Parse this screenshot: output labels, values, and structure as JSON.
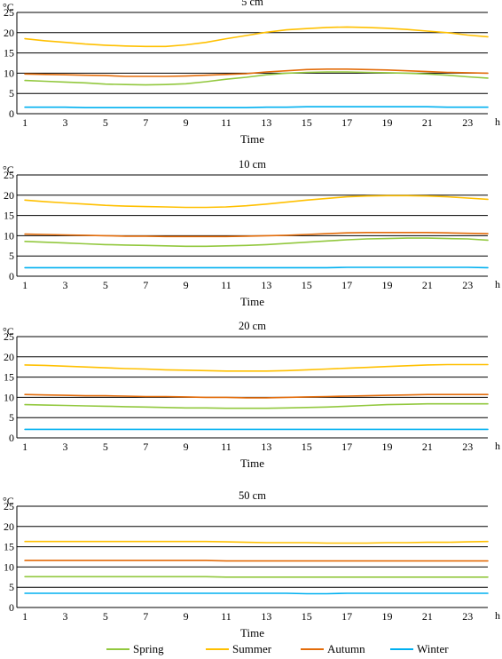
{
  "chart_data": [
    {
      "type": "line",
      "title": "5 cm",
      "unit_label": "°C",
      "xlabel": "Time",
      "x_unit_label": "h",
      "ylim": [
        0,
        25
      ],
      "y_ticks": [
        0,
        5,
        10,
        15,
        20,
        25
      ],
      "x_ticks": [
        1,
        3,
        5,
        7,
        9,
        11,
        13,
        15,
        17,
        19,
        21,
        23
      ],
      "x_range": [
        0.6,
        24
      ],
      "grid": "horizontal",
      "x": [
        1,
        2,
        3,
        4,
        5,
        6,
        7,
        8,
        9,
        10,
        11,
        12,
        13,
        14,
        15,
        16,
        17,
        18,
        19,
        20,
        21,
        22,
        23,
        24
      ],
      "series": [
        {
          "name": "Spring",
          "color": "#92C83E",
          "values": [
            8.2,
            8.0,
            7.8,
            7.6,
            7.3,
            7.2,
            7.1,
            7.2,
            7.4,
            7.9,
            8.5,
            9.0,
            9.6,
            10.0,
            10.2,
            10.3,
            10.3,
            10.2,
            10.1,
            10.0,
            9.8,
            9.5,
            9.1,
            8.8
          ]
        },
        {
          "name": "Summer",
          "color": "#FFC000",
          "values": [
            18.5,
            18.0,
            17.6,
            17.2,
            16.9,
            16.7,
            16.6,
            16.6,
            17.0,
            17.6,
            18.5,
            19.3,
            20.1,
            20.7,
            21.0,
            21.3,
            21.4,
            21.3,
            21.1,
            20.8,
            20.4,
            20.0,
            19.4,
            19.0
          ]
        },
        {
          "name": "Autumn",
          "color": "#E36C0A",
          "values": [
            9.8,
            9.7,
            9.6,
            9.5,
            9.4,
            9.2,
            9.2,
            9.2,
            9.3,
            9.5,
            9.7,
            9.9,
            10.3,
            10.6,
            10.9,
            11.0,
            11.0,
            10.9,
            10.8,
            10.6,
            10.4,
            10.2,
            10.1,
            10.0
          ]
        },
        {
          "name": "Winter",
          "color": "#00B0F0",
          "values": [
            1.6,
            1.6,
            1.6,
            1.5,
            1.5,
            1.5,
            1.5,
            1.5,
            1.5,
            1.5,
            1.5,
            1.5,
            1.6,
            1.6,
            1.7,
            1.7,
            1.7,
            1.7,
            1.7,
            1.7,
            1.7,
            1.6,
            1.6,
            1.6
          ]
        }
      ]
    },
    {
      "type": "line",
      "title": "10 cm",
      "unit_label": "°C",
      "xlabel": "Time",
      "x_unit_label": "h",
      "ylim": [
        0,
        25
      ],
      "y_ticks": [
        0,
        5,
        10,
        15,
        20,
        25
      ],
      "x_ticks": [
        1,
        3,
        5,
        7,
        9,
        11,
        13,
        15,
        17,
        19,
        21,
        23
      ],
      "x_range": [
        0.6,
        24
      ],
      "grid": "horizontal",
      "x": [
        1,
        2,
        3,
        4,
        5,
        6,
        7,
        8,
        9,
        10,
        11,
        12,
        13,
        14,
        15,
        16,
        17,
        18,
        19,
        20,
        21,
        22,
        23,
        24
      ],
      "series": [
        {
          "name": "Spring",
          "color": "#92C83E",
          "values": [
            8.6,
            8.4,
            8.2,
            8.0,
            7.8,
            7.7,
            7.6,
            7.5,
            7.4,
            7.4,
            7.5,
            7.6,
            7.8,
            8.1,
            8.4,
            8.7,
            9.0,
            9.2,
            9.3,
            9.4,
            9.4,
            9.3,
            9.2,
            8.9
          ]
        },
        {
          "name": "Summer",
          "color": "#FFC000",
          "values": [
            18.8,
            18.4,
            18.1,
            17.8,
            17.5,
            17.3,
            17.2,
            17.1,
            17.0,
            17.0,
            17.1,
            17.4,
            17.8,
            18.3,
            18.8,
            19.2,
            19.6,
            19.8,
            19.9,
            19.9,
            19.8,
            19.6,
            19.3,
            19.0
          ]
        },
        {
          "name": "Autumn",
          "color": "#E36C0A",
          "values": [
            10.4,
            10.3,
            10.2,
            10.1,
            10.0,
            9.9,
            9.9,
            9.8,
            9.8,
            9.8,
            9.8,
            9.9,
            10.0,
            10.1,
            10.3,
            10.5,
            10.7,
            10.8,
            10.8,
            10.8,
            10.8,
            10.7,
            10.6,
            10.5
          ]
        },
        {
          "name": "Winter",
          "color": "#00B0F0",
          "values": [
            2.1,
            2.1,
            2.1,
            2.1,
            2.1,
            2.1,
            2.1,
            2.1,
            2.1,
            2.1,
            2.1,
            2.1,
            2.1,
            2.1,
            2.1,
            2.1,
            2.2,
            2.2,
            2.2,
            2.2,
            2.2,
            2.2,
            2.2,
            2.1
          ]
        }
      ]
    },
    {
      "type": "line",
      "title": "20 cm",
      "unit_label": "°C",
      "xlabel": "Time",
      "x_unit_label": "h",
      "ylim": [
        0,
        25
      ],
      "y_ticks": [
        0,
        5,
        10,
        15,
        20,
        25
      ],
      "x_ticks": [
        1,
        3,
        5,
        7,
        9,
        11,
        13,
        15,
        17,
        19,
        21,
        23
      ],
      "x_range": [
        0.6,
        24
      ],
      "grid": "horizontal",
      "x": [
        1,
        2,
        3,
        4,
        5,
        6,
        7,
        8,
        9,
        10,
        11,
        12,
        13,
        14,
        15,
        16,
        17,
        18,
        19,
        20,
        21,
        22,
        23,
        24
      ],
      "series": [
        {
          "name": "Spring",
          "color": "#92C83E",
          "values": [
            8.2,
            8.1,
            8.0,
            7.9,
            7.8,
            7.7,
            7.6,
            7.5,
            7.4,
            7.4,
            7.3,
            7.3,
            7.3,
            7.4,
            7.5,
            7.6,
            7.8,
            8.0,
            8.2,
            8.3,
            8.4,
            8.4,
            8.4,
            8.4
          ]
        },
        {
          "name": "Summer",
          "color": "#FFC000",
          "values": [
            18.0,
            17.9,
            17.7,
            17.5,
            17.3,
            17.1,
            17.0,
            16.8,
            16.7,
            16.6,
            16.5,
            16.5,
            16.5,
            16.6,
            16.8,
            17.0,
            17.2,
            17.4,
            17.6,
            17.8,
            18.0,
            18.1,
            18.1,
            18.1
          ]
        },
        {
          "name": "Autumn",
          "color": "#E36C0A",
          "values": [
            10.7,
            10.6,
            10.5,
            10.4,
            10.4,
            10.3,
            10.2,
            10.2,
            10.1,
            10.0,
            10.0,
            9.9,
            9.9,
            10.0,
            10.1,
            10.2,
            10.3,
            10.4,
            10.5,
            10.6,
            10.7,
            10.7,
            10.7,
            10.7
          ]
        },
        {
          "name": "Winter",
          "color": "#00B0F0",
          "values": [
            2.1,
            2.1,
            2.1,
            2.1,
            2.1,
            2.1,
            2.1,
            2.1,
            2.1,
            2.1,
            2.1,
            2.1,
            2.1,
            2.1,
            2.1,
            2.1,
            2.1,
            2.1,
            2.1,
            2.1,
            2.1,
            2.1,
            2.1,
            2.1
          ]
        }
      ]
    },
    {
      "type": "line",
      "title": "50 cm",
      "unit_label": "°C",
      "xlabel": "Time",
      "x_unit_label": "h",
      "ylim": [
        0,
        25
      ],
      "y_ticks": [
        0,
        5,
        10,
        15,
        20,
        25
      ],
      "x_ticks": [
        1,
        3,
        5,
        7,
        9,
        11,
        13,
        15,
        17,
        19,
        21,
        23
      ],
      "x_range": [
        0.6,
        24
      ],
      "grid": "horizontal",
      "x": [
        1,
        2,
        3,
        4,
        5,
        6,
        7,
        8,
        9,
        10,
        11,
        12,
        13,
        14,
        15,
        16,
        17,
        18,
        19,
        20,
        21,
        22,
        23,
        24
      ],
      "series": [
        {
          "name": "Spring",
          "color": "#92C83E",
          "values": [
            7.6,
            7.6,
            7.6,
            7.6,
            7.6,
            7.6,
            7.6,
            7.6,
            7.6,
            7.6,
            7.5,
            7.5,
            7.5,
            7.5,
            7.5,
            7.5,
            7.5,
            7.5,
            7.5,
            7.5,
            7.5,
            7.5,
            7.5,
            7.5
          ]
        },
        {
          "name": "Summer",
          "color": "#FFC000",
          "values": [
            16.3,
            16.3,
            16.3,
            16.3,
            16.3,
            16.3,
            16.3,
            16.3,
            16.3,
            16.3,
            16.2,
            16.1,
            16.0,
            16.0,
            16.0,
            15.9,
            15.9,
            15.9,
            16.0,
            16.0,
            16.1,
            16.1,
            16.2,
            16.3
          ]
        },
        {
          "name": "Autumn",
          "color": "#E36C0A",
          "values": [
            11.6,
            11.6,
            11.6,
            11.6,
            11.6,
            11.6,
            11.6,
            11.6,
            11.6,
            11.6,
            11.5,
            11.5,
            11.5,
            11.5,
            11.5,
            11.5,
            11.5,
            11.5,
            11.5,
            11.5,
            11.5,
            11.5,
            11.5,
            11.5
          ]
        },
        {
          "name": "Winter",
          "color": "#00B0F0",
          "values": [
            3.5,
            3.5,
            3.5,
            3.5,
            3.5,
            3.5,
            3.5,
            3.5,
            3.5,
            3.5,
            3.5,
            3.5,
            3.5,
            3.5,
            3.4,
            3.4,
            3.5,
            3.5,
            3.5,
            3.5,
            3.5,
            3.5,
            3.5,
            3.5
          ]
        }
      ]
    }
  ],
  "legend": {
    "placement": "bottom",
    "items": [
      {
        "label": "Spring",
        "color": "#92C83E"
      },
      {
        "label": "Summer",
        "color": "#FFC000"
      },
      {
        "label": "Autumn",
        "color": "#E36C0A"
      },
      {
        "label": "Winter",
        "color": "#00B0F0"
      }
    ]
  }
}
